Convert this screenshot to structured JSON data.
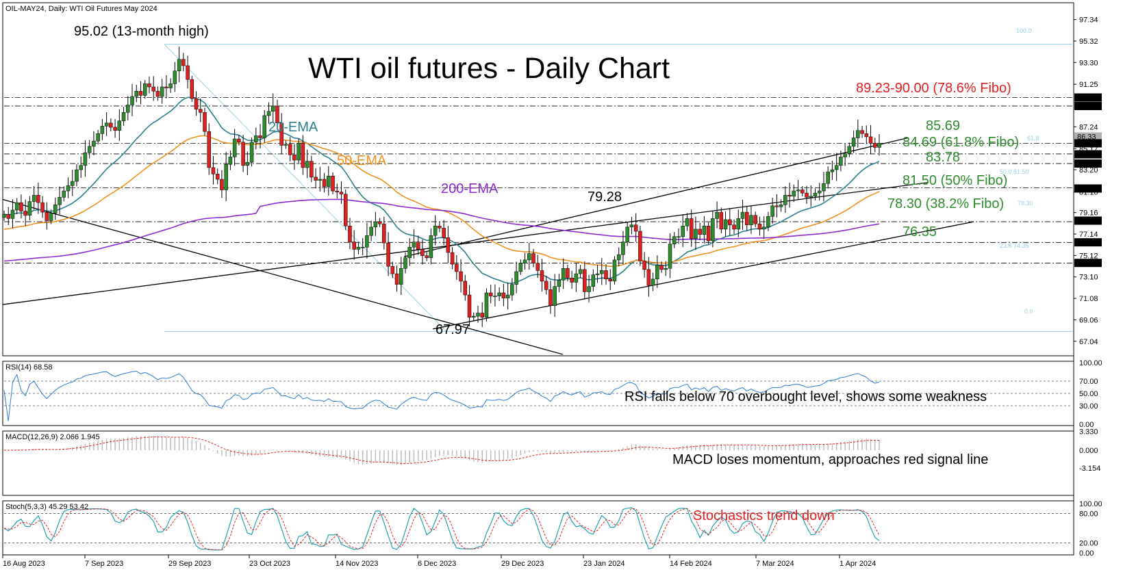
{
  "header": {
    "symbol_line": "OIL-MAY24, Daily:  WTI Oil Futures May 2024",
    "title": "WTI oil futures - Daily Chart"
  },
  "colors": {
    "bull": "#2e8b2e",
    "bear": "#e02020",
    "ema20": "#2a7f8a",
    "ema50": "#f09020",
    "ema200": "#8a2bd0",
    "trend": "#000000",
    "fibo": "#9ad0e0",
    "green_text": "#2e8b2e",
    "red_text": "#e02020",
    "rsi": "#2a7ad0",
    "macd_hist": "#b8b8b8",
    "signal": "#e02020",
    "stoch_main": "#20a0b0"
  },
  "annotations": {
    "high": "95.02 (13-month high)",
    "low": "67.97",
    "mid_high": "79.28",
    "fibo786": "89.23-90.00 (78.6% Fibo)",
    "lvl8569": "85.69",
    "fibo618": "84.69 (61.8% Fibo)",
    "lvl8378": "83.78",
    "fibo50": "81.50 (50% Fibo)",
    "fibo382": "78.30 (38.2% Fibo)",
    "lvl7635": "76.35",
    "ema20": "20-EMA",
    "ema50": "50-EMA",
    "ema200": "200-EMA",
    "fibo_100": "100.0",
    "fibo_0": "0.0",
    "fibo_50_small": "50.0 81.50",
    "fibo_382_small": "78.30",
    "fibo_236_small": "23.6 74.35",
    "fibo_618_small": "61.8"
  },
  "rsi_panel": {
    "label": "RSI(14) 68.58",
    "note": "RSI falls below 70 overbought level, shows some weakness",
    "ticks": [
      "100.00",
      "70.00",
      "50.00",
      "30.00",
      "0.00"
    ]
  },
  "macd_panel": {
    "label": "MACD(12,26,9) 2.066 1.945",
    "note": "MACD loses momentum, approaches red signal line",
    "ticks": [
      "3.330",
      "0.000",
      "-3.154"
    ]
  },
  "stoch_panel": {
    "label": "Stoch(5,3,3) 45.29 53.42",
    "note": "Stochastics trend down",
    "ticks": [
      "100.00",
      "80.00",
      "20.00",
      "0.00"
    ]
  },
  "chart_data": {
    "type": "candlestick",
    "title": "WTI oil futures - Daily Chart",
    "x_labels": [
      "16 Aug 2023",
      "7 Sep 2023",
      "29 Sep 2023",
      "23 Oct 2023",
      "14 Nov 2023",
      "6 Dec 2023",
      "29 Dec 2023",
      "23 Jan 2024",
      "14 Feb 2024",
      "7 Mar 2024",
      "1 Apr 2024"
    ],
    "y_ticks": [
      97.34,
      95.32,
      93.3,
      91.25,
      87.24,
      85.17,
      83.2,
      81.1,
      79.16,
      77.14,
      75.12,
      73.1,
      71.08,
      69.06,
      67.04
    ],
    "ylim": [
      65.8,
      98.8
    ],
    "price_tags": [
      {
        "label": "90.00",
        "value": 90.0,
        "style": "black"
      },
      {
        "label": "89.20",
        "value": 89.2,
        "style": "black"
      },
      {
        "label": "86.33",
        "value": 86.33,
        "style": "gray"
      },
      {
        "label": "85.69",
        "value": 85.69,
        "style": "black"
      },
      {
        "label": "84.65",
        "value": 84.65,
        "style": "black"
      },
      {
        "label": "83.78",
        "value": 83.78,
        "style": "black"
      },
      {
        "label": "81.43",
        "value": 81.43,
        "style": "black"
      },
      {
        "label": "78.40",
        "value": 78.4,
        "style": "black"
      },
      {
        "label": "76.36",
        "value": 76.36,
        "style": "black"
      },
      {
        "label": "74.42",
        "value": 74.42,
        "style": "black"
      }
    ],
    "dashed_levels": [
      90.0,
      89.2,
      85.69,
      84.69,
      83.78,
      81.5,
      78.3,
      76.35,
      74.4
    ],
    "closes": [
      79.0,
      78.6,
      79.4,
      80.1,
      79.3,
      78.9,
      80.2,
      80.8,
      80.1,
      79.2,
      78.4,
      79.1,
      79.9,
      80.6,
      81.2,
      81.7,
      82.1,
      83.2,
      83.6,
      84.8,
      85.4,
      85.9,
      86.6,
      87.3,
      87.6,
      87.2,
      86.9,
      87.8,
      88.6,
      89.3,
      90.1,
      90.6,
      90.2,
      91.3,
      91.0,
      90.6,
      90.1,
      91.0,
      90.9,
      91.3,
      92.5,
      93.6,
      93.0,
      91.7,
      89.9,
      88.9,
      88.6,
      86.8,
      83.4,
      82.8,
      82.3,
      81.3,
      83.7,
      84.4,
      86.1,
      85.8,
      83.6,
      83.9,
      85.8,
      86.4,
      86.2,
      88.3,
      88.7,
      89.2,
      87.6,
      85.5,
      85.6,
      84.6,
      84.1,
      85.7,
      83.4,
      84.0,
      82.5,
      82.2,
      82.3,
      81.6,
      82.6,
      81.2,
      81.1,
      80.9,
      77.9,
      76.4,
      75.7,
      75.9,
      75.9,
      77.0,
      77.8,
      78.3,
      78.1,
      76.3,
      74.1,
      73.4,
      72.4,
      73.9,
      74.9,
      75.9,
      76.4,
      75.7,
      75.1,
      74.9,
      77.0,
      77.9,
      77.7,
      76.8,
      75.4,
      74.3,
      73.6,
      72.7,
      71.4,
      69.3,
      69.4,
      69.7,
      69.3,
      71.6,
      71.3,
      71.3,
      71.6,
      71.1,
      71.4,
      72.4,
      73.6,
      74.4,
      74.7,
      75.3,
      74.4,
      73.7,
      72.7,
      71.9,
      70.4,
      72.2,
      72.8,
      73.9,
      73.0,
      72.6,
      73.4,
      73.8,
      71.7,
      72.2,
      73.3,
      73.4,
      73.7,
      72.9,
      72.7,
      74.7,
      75.2,
      76.4,
      77.8,
      78.0,
      77.4,
      74.6,
      73.8,
      72.3,
      72.9,
      74.2,
      73.8,
      73.9,
      76.2,
      76.9,
      76.9,
      77.9,
      78.6,
      76.7,
      77.6,
      77.1,
      77.9,
      76.5,
      78.6,
      79.2,
      77.6,
      78.5,
      78.0,
      77.6,
      78.6,
      79.2,
      78.0,
      78.9,
      78.1,
      77.6,
      77.8,
      78.8,
      79.8,
      79.7,
      79.9,
      80.8,
      80.7,
      81.2,
      81.3,
      81.0,
      80.6,
      80.7,
      81.0,
      81.2,
      81.9,
      83.0,
      83.2,
      83.6,
      84.4,
      84.7,
      85.4,
      86.2,
      86.9,
      86.6,
      86.3,
      85.7,
      85.3,
      85.7
    ]
  }
}
